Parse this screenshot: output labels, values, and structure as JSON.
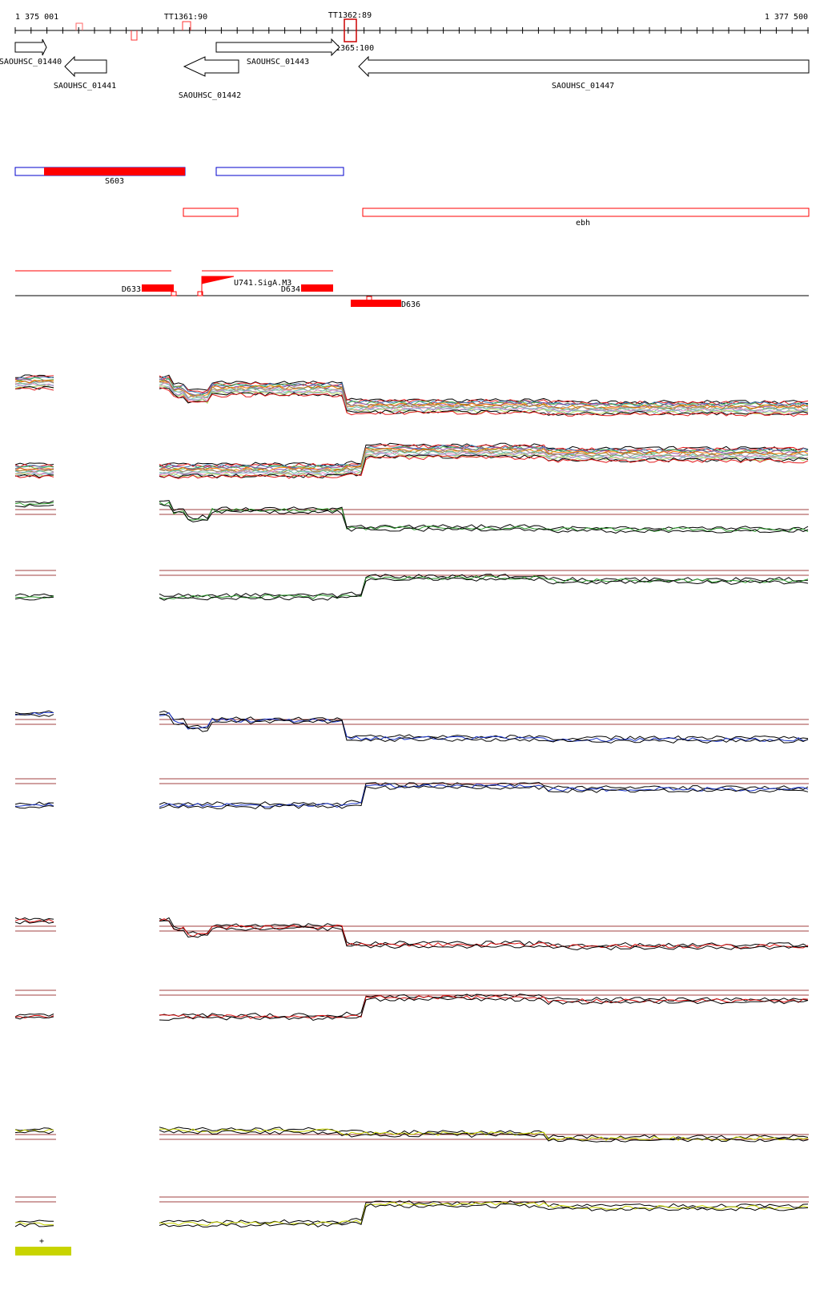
{
  "colors": {
    "accent": "#ff0000",
    "strand_plus": "#0000cc",
    "legend": "#c8d400"
  },
  "ruler": {
    "start_label": "1 375 001",
    "end_label": "1 377 500",
    "start": 1375001,
    "end": 1377500
  },
  "terminators": [
    {
      "label": "TT1361:90",
      "pos": 1375950
    },
    {
      "label": "TT1362:89",
      "pos": 1377050
    }
  ],
  "terminator_below": {
    "label": "TT1365:100"
  },
  "genes": [
    {
      "id": "SAOUHSC_01440",
      "label": "SAOUHSC_01440",
      "start": 1375001,
      "end": 1375185,
      "strand": "+"
    },
    {
      "id": "SAOUHSC_01441",
      "label": "SAOUHSC_01441",
      "start": 1375300,
      "end": 1375560,
      "strand": "-"
    },
    {
      "id": "SAOUHSC_01442",
      "label": "SAOUHSC_01442",
      "start": 1376150,
      "end": 1376510,
      "strand": "-"
    },
    {
      "id": "SAOUHSC_01443",
      "label": "SAOUHSC_01443",
      "start": 1376210,
      "end": 1377050,
      "strand": "+"
    },
    {
      "id": "SAOUHSC_01447",
      "label": "SAOUHSC_01447",
      "start": 1377130,
      "end": 1379500,
      "strand": "-"
    }
  ],
  "segments_plus": [
    {
      "label": "",
      "start": 1375001,
      "end": 1377050,
      "fill_from": 1375180,
      "fill_to": 1375955
    },
    {
      "label": "S603",
      "start": 1376210,
      "end": 1377050
    }
  ],
  "segments_minus": [
    {
      "label": "",
      "start": 1375955,
      "end": 1376300
    },
    {
      "label": "ebh",
      "start": 1377130,
      "end": 1379500
    }
  ],
  "promoter": {
    "label": "U741.SigA.M3"
  },
  "upshifts": [
    {
      "label": "D633",
      "start": 1375800,
      "end": 1376000
    },
    {
      "label": "D634",
      "start": 1376810,
      "end": 1377010
    },
    {
      "label": "D636",
      "start": 1377080,
      "end": 1377400
    }
  ],
  "legend": {
    "symbol": "+"
  }
}
